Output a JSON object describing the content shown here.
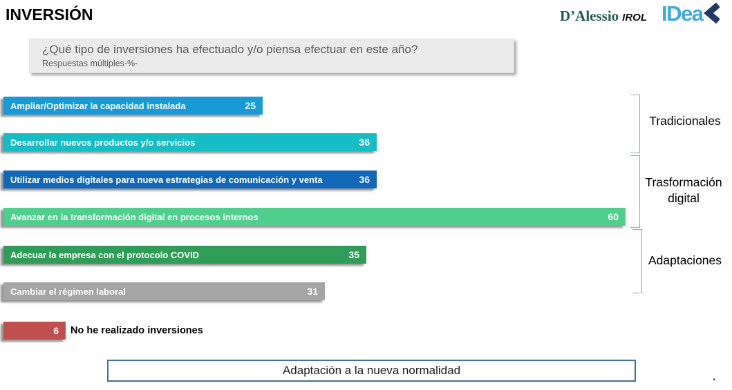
{
  "header": {
    "title": "INVERSIÓN"
  },
  "logos": {
    "dalessio": "D’Alessio",
    "irol": "IROL",
    "idea": "IDea",
    "idea_text_color": "#3EA9DC",
    "idea_chevron_color": "#1F3864",
    "dalessio_color": "#1E5B4F"
  },
  "question": {
    "text": "¿Qué tipo de inversiones ha efectuado y/o piensa efectuar en este año?",
    "subtitle": "Respuestas múltiples-%-"
  },
  "chart_data": {
    "type": "bar",
    "orientation": "horizontal",
    "value_unit": "%",
    "title": "¿Qué tipo de inversiones ha efectuado y/o piensa efectuar en este año?",
    "subtitle": "Respuestas múltiples-%-",
    "categories": [
      "Ampliar/Optimizar la capacidad instalada",
      "Desarrollar nuevos productos y/o servicios",
      "Utilizar medios digitales para nueva estrategias de comunicación y venta",
      "Avanzar en la transformación digital en procesos internos",
      "Adecuar la empresa con el protocolo COVID",
      "Cambiar el régimen laboral",
      "No he realizado inversiones"
    ],
    "values": [
      25,
      36,
      36,
      60,
      35,
      31,
      6
    ],
    "colors": [
      "#189AD6",
      "#16BDC4",
      "#1167B8",
      "#4FCF8C",
      "#2F9C57",
      "#A5A5A5",
      "#C0504D"
    ],
    "xlim": [
      0,
      62
    ],
    "grid": false,
    "data_labels": "inside-end",
    "legend_position": "none",
    "groups": [
      {
        "label": "Tradicionales",
        "category_indexes": [
          0,
          1
        ]
      },
      {
        "label": "Trasformación digital",
        "category_indexes": [
          2,
          3
        ]
      },
      {
        "label": "Adaptaciones",
        "category_indexes": [
          4,
          5
        ]
      }
    ],
    "bracket_color": "#8FA8CC"
  },
  "footer": {
    "box_label": "Adaptación a la nueva normalidad",
    "footnote": "."
  }
}
